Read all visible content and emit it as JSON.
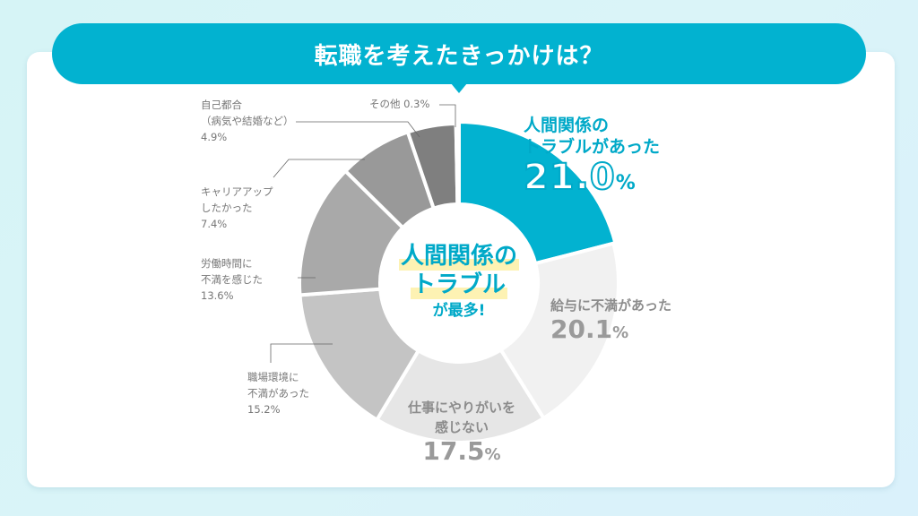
{
  "header": {
    "title": "転職を考えたきっかけは？"
  },
  "colors": {
    "accent": "#02b2d0",
    "accent_text": "#00a9c8",
    "highlight": "#fdf2b3",
    "label_gray": "#777777"
  },
  "center": {
    "line1": "人間関係の",
    "line2": "トラブル",
    "line3": "が最多!"
  },
  "labels": {
    "human": {
      "line1": "人間関係の",
      "line2": "トラブルがあった",
      "value": "21.0",
      "pct": "%"
    },
    "salary": {
      "line1": "給与に不満があった",
      "value": "20.1",
      "pct": "%"
    },
    "reward": {
      "line1": "仕事にやりがいを",
      "line2": "感じない",
      "value": "17.5",
      "pct": "%"
    },
    "environment": {
      "line1": "職場環境に",
      "line2": "不満があった",
      "value": "15.2%"
    },
    "hours": {
      "line1": "労働時間に",
      "line2": "不満を感じた",
      "value": "13.6%"
    },
    "career": {
      "line1": "キャリアアップ",
      "line2": "したかった",
      "value": "7.4%"
    },
    "personal": {
      "line1": "自己都合",
      "line2": "（病気や結婚など）",
      "value": "4.9%"
    },
    "other": {
      "line1": "その他 0.3%"
    }
  },
  "chart_data": {
    "type": "pie",
    "title": "転職を考えたきっかけは？",
    "donut": true,
    "categories": [
      "人間関係のトラブルがあった",
      "給与に不満があった",
      "仕事にやりがいを感じない",
      "職場環境に不満があった",
      "労働時間に不満を感じた",
      "キャリアアップしたかった",
      "自己都合（病気や結婚など）",
      "その他"
    ],
    "values": [
      21.0,
      20.1,
      17.5,
      15.2,
      13.6,
      7.4,
      4.9,
      0.3
    ],
    "unit": "%",
    "colors": [
      "#02b2d0",
      "#f1f1f1",
      "#e6e6e6",
      "#c4c4c4",
      "#a9a9a9",
      "#999999",
      "#7f7f7f",
      "#555555"
    ],
    "start_angle_deg": 0,
    "direction": "clockwise",
    "center_annotation": "人間関係のトラブルが最多!"
  }
}
